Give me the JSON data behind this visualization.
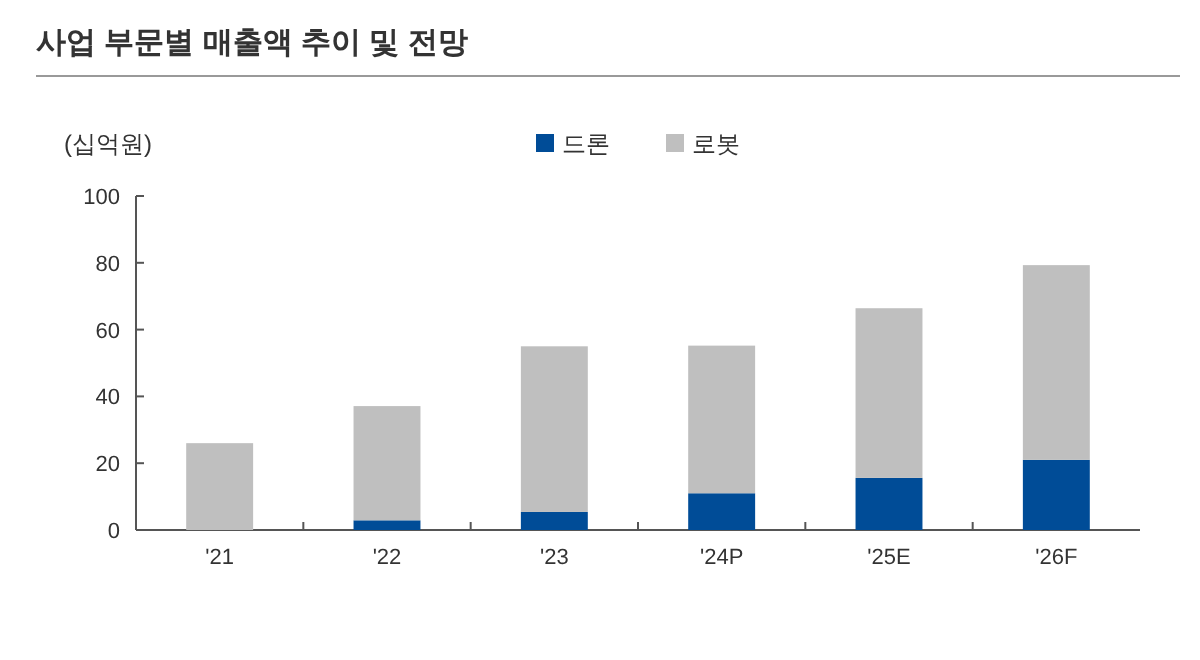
{
  "chart_data": {
    "type": "bar",
    "title": "사업 부문별 매출액 추이 및 전망",
    "ylabel": "(십억원)",
    "categories": [
      "'21",
      "'22",
      "'23",
      "'24P",
      "'25E",
      "'26F"
    ],
    "stacked": true,
    "legend": "top",
    "series": [
      {
        "name": "드론",
        "color": "#004c97",
        "values": [
          0,
          2.9,
          5.4,
          11,
          15.6,
          21
        ]
      },
      {
        "name": "로봇",
        "color": "#bfbfbf",
        "values": [
          26,
          34.2,
          49.6,
          44.2,
          50.8,
          58.3
        ]
      }
    ],
    "ylim": [
      0,
      100
    ],
    "yticks": [
      0,
      20,
      40,
      60,
      80,
      100
    ],
    "grid": false
  }
}
